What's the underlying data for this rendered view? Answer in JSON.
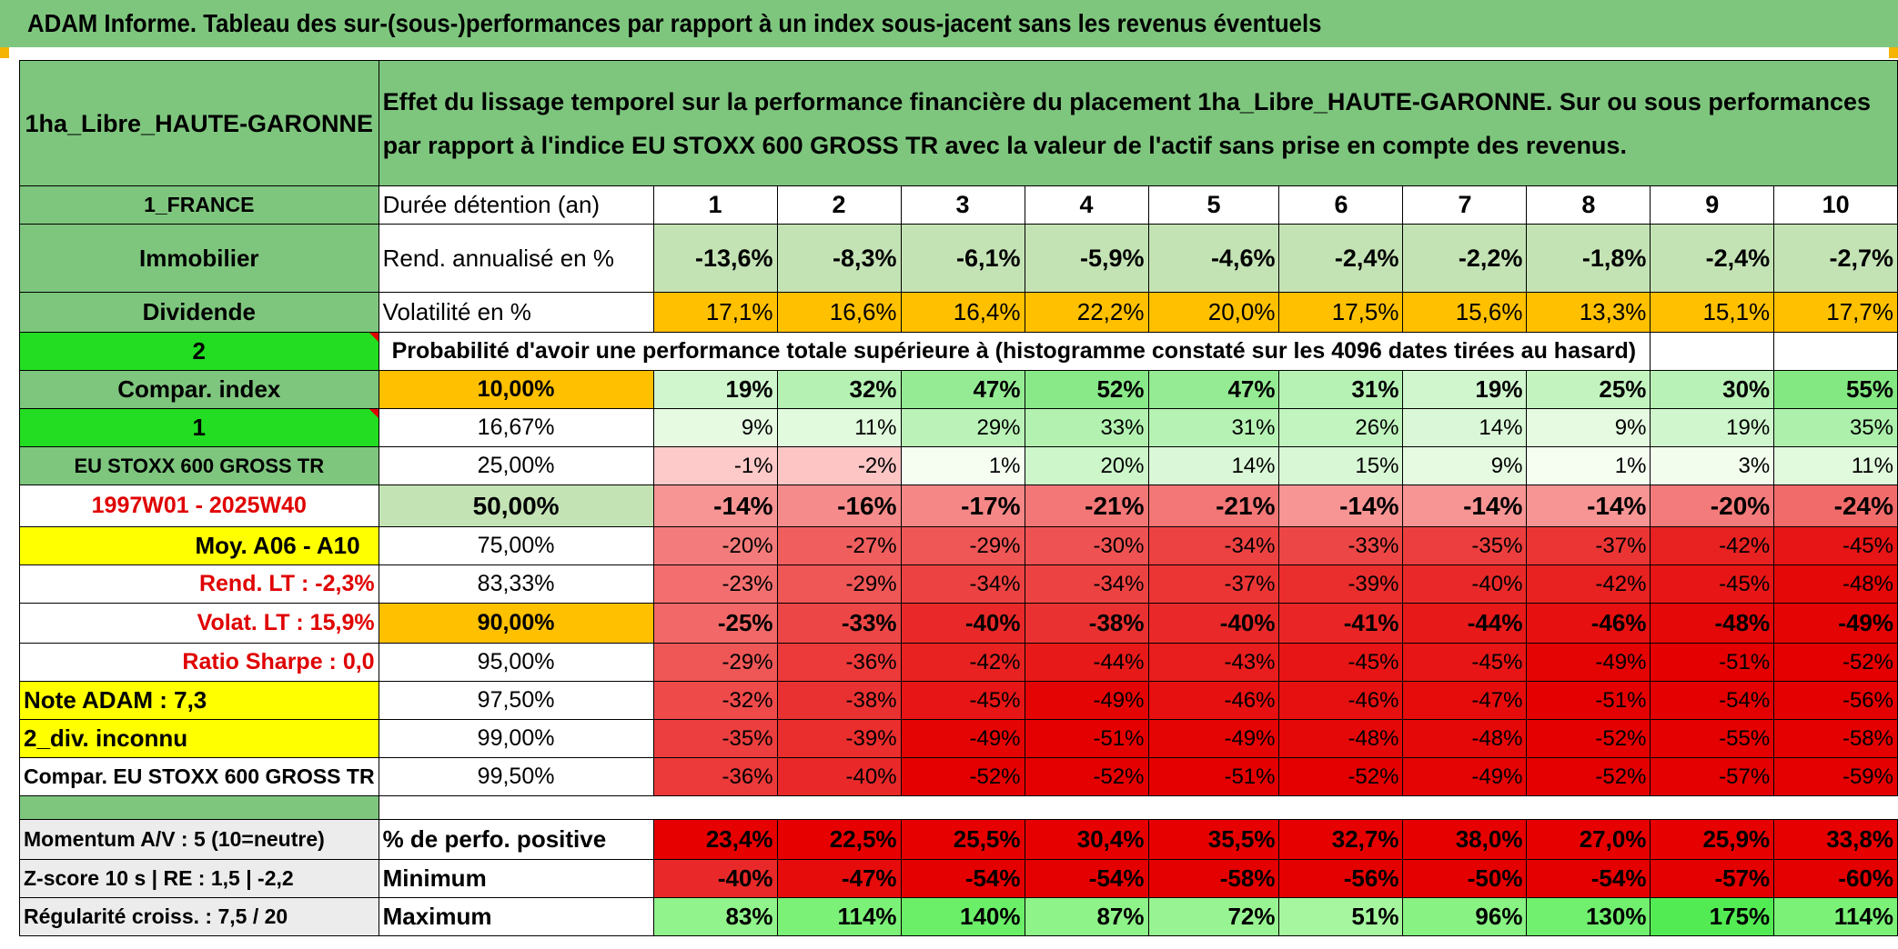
{
  "title": "ADAM Informe. Tableau des sur-(sous-)performances par rapport à un index sous-jacent sans les revenus éventuels",
  "left": {
    "name": "1ha_Libre_HAUTE-GARONNE",
    "country": "1_FRANCE",
    "category": "Immobilier",
    "type": "Dividende",
    "selector_a": "2",
    "compar_index": "Compar. index",
    "selector_b": "1",
    "index_name": "EU STOXX 600 GROSS TR",
    "period": "1997W01 - 2025W40",
    "moy": "Moy. A06 - A10",
    "rend_lt": "Rend. LT :    -2,3%",
    "volat_lt": "Volat. LT :   15,9%",
    "sharpe": "Ratio Sharpe :    0,0",
    "note": "Note ADAM : 7,3",
    "div": "2_div. inconnu",
    "compar_full": "Compar. EU STOXX 600 GROSS TR",
    "momentum": "Momentum A/V : 5 (10=neutre)",
    "zscore": "Z-score 10 s | RE : 1,5 | -2,2",
    "regularite": "Régularité croiss. : 7,5 / 20"
  },
  "description": "Effet du lissage temporel sur la performance financière du placement 1ha_Libre_HAUTE-GARONNE. Sur ou sous performances par rapport à l'indice EU STOXX 600 GROSS TR avec la valeur de l'actif sans prise en compte des revenus.",
  "labels": {
    "duree": "Durée détention (an)",
    "rend": "Rend. annualisé en %",
    "vol": "Volatilité en %",
    "proba": "Probabilité d'avoir une performance totale supérieure à (histogramme constaté sur les 4096 dates tirées au hasard)",
    "perfo_pos": "% de perfo. positive",
    "minimum": "Minimum",
    "maximum": "Maximum"
  },
  "years": [
    "1",
    "2",
    "3",
    "4",
    "5",
    "6",
    "7",
    "8",
    "9",
    "10"
  ],
  "rend_values": [
    "-13,6%",
    "-8,3%",
    "-6,1%",
    "-5,9%",
    "-4,6%",
    "-2,4%",
    "-2,2%",
    "-1,8%",
    "-2,4%",
    "-2,7%"
  ],
  "vol_values": [
    "17,1%",
    "16,6%",
    "16,4%",
    "22,2%",
    "20,0%",
    "17,5%",
    "15,6%",
    "13,3%",
    "15,1%",
    "17,7%"
  ],
  "percentile_rows": [
    {
      "p": "10,00%",
      "values": [
        "19%",
        "32%",
        "47%",
        "52%",
        "47%",
        "31%",
        "19%",
        "25%",
        "30%",
        "55%"
      ]
    },
    {
      "p": "16,67%",
      "values": [
        "9%",
        "11%",
        "29%",
        "33%",
        "31%",
        "26%",
        "14%",
        "9%",
        "19%",
        "35%"
      ]
    },
    {
      "p": "25,00%",
      "values": [
        "-1%",
        "-2%",
        "1%",
        "20%",
        "14%",
        "15%",
        "9%",
        "1%",
        "3%",
        "11%"
      ]
    },
    {
      "p": "50,00%",
      "values": [
        "-14%",
        "-16%",
        "-17%",
        "-21%",
        "-21%",
        "-14%",
        "-14%",
        "-14%",
        "-20%",
        "-24%"
      ]
    },
    {
      "p": "75,00%",
      "values": [
        "-20%",
        "-27%",
        "-29%",
        "-30%",
        "-34%",
        "-33%",
        "-35%",
        "-37%",
        "-42%",
        "-45%"
      ]
    },
    {
      "p": "83,33%",
      "values": [
        "-23%",
        "-29%",
        "-34%",
        "-34%",
        "-37%",
        "-39%",
        "-40%",
        "-42%",
        "-45%",
        "-48%"
      ]
    },
    {
      "p": "90,00%",
      "values": [
        "-25%",
        "-33%",
        "-40%",
        "-38%",
        "-40%",
        "-41%",
        "-44%",
        "-46%",
        "-48%",
        "-49%"
      ]
    },
    {
      "p": "95,00%",
      "values": [
        "-29%",
        "-36%",
        "-42%",
        "-44%",
        "-43%",
        "-45%",
        "-45%",
        "-49%",
        "-51%",
        "-52%"
      ]
    },
    {
      "p": "97,50%",
      "values": [
        "-32%",
        "-38%",
        "-45%",
        "-49%",
        "-46%",
        "-46%",
        "-47%",
        "-51%",
        "-54%",
        "-56%"
      ]
    },
    {
      "p": "99,00%",
      "values": [
        "-35%",
        "-39%",
        "-49%",
        "-51%",
        "-49%",
        "-48%",
        "-48%",
        "-52%",
        "-55%",
        "-58%"
      ]
    },
    {
      "p": "99,50%",
      "values": [
        "-36%",
        "-40%",
        "-52%",
        "-52%",
        "-51%",
        "-52%",
        "-49%",
        "-52%",
        "-57%",
        "-59%"
      ]
    }
  ],
  "perfo_pos": [
    "23,4%",
    "22,5%",
    "25,5%",
    "30,4%",
    "35,5%",
    "32,7%",
    "38,0%",
    "27,0%",
    "25,9%",
    "33,8%"
  ],
  "minimum": [
    "-40%",
    "-47%",
    "-54%",
    "-54%",
    "-58%",
    "-56%",
    "-50%",
    "-54%",
    "-57%",
    "-60%"
  ],
  "maximum": [
    "83%",
    "114%",
    "140%",
    "87%",
    "72%",
    "51%",
    "96%",
    "130%",
    "175%",
    "114%"
  ],
  "colors": {
    "header_green": "#7ec67e",
    "bright_green": "#22dd22",
    "yellow": "#ffff00",
    "orange": "#ffc000",
    "red_text": "#e00000",
    "rend_bg": "#c4e3b5",
    "neg_red": "#e00000"
  }
}
